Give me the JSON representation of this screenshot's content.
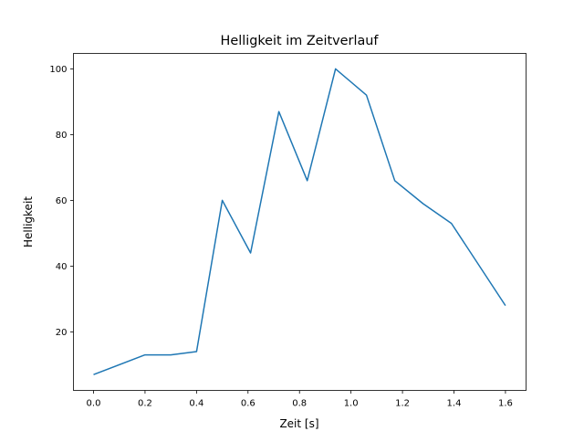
{
  "chart_data": {
    "type": "line",
    "title": "Helligkeit im Zeitverlauf",
    "xlabel": "Zeit [s]",
    "ylabel": "Helligkeit",
    "xlim": [
      -0.078,
      1.68
    ],
    "ylim": [
      2.2,
      104.7
    ],
    "xticks": [
      0.0,
      0.2,
      0.4,
      0.6,
      0.8,
      1.0,
      1.2,
      1.4,
      1.6
    ],
    "xtick_labels": [
      "0.0",
      "0.2",
      "0.4",
      "0.6",
      "0.8",
      "1.0",
      "1.2",
      "1.4",
      "1.6"
    ],
    "yticks": [
      20,
      40,
      60,
      80,
      100
    ],
    "ytick_labels": [
      "20",
      "40",
      "60",
      "80",
      "100"
    ],
    "grid": false,
    "series": [
      {
        "name": "Helligkeit",
        "color": "#1f77b4",
        "x": [
          0.0,
          0.2,
          0.3,
          0.4,
          0.5,
          0.61,
          0.72,
          0.83,
          0.94,
          1.06,
          1.17,
          1.28,
          1.39,
          1.6
        ],
        "y": [
          7,
          13,
          13,
          14,
          60,
          44,
          87,
          66,
          100,
          92,
          66,
          59,
          53,
          28
        ]
      }
    ]
  }
}
